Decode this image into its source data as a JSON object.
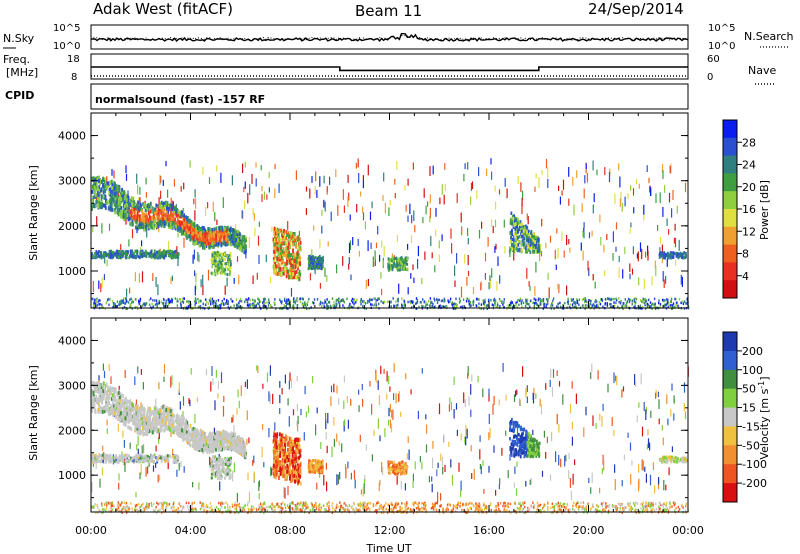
{
  "header": {
    "radar_title": "Adak West (fitACF)",
    "beam_title": "Beam 11",
    "date": "24/Sep/2014"
  },
  "params": {
    "nsky_label": "N.Sky",
    "nsearch_label": "N.Search",
    "freq_label_1": "Freq.",
    "freq_label_2": "[MHz]",
    "nave_label": "Nave",
    "cpid_label": "CPID",
    "cpid_text": "normalsound (fast) -157 RF",
    "noise_ticks_left": [
      "10^5",
      "10^0"
    ],
    "noise_ticks_right": [
      "10^5",
      "10^0"
    ],
    "freq_ticks": [
      "18",
      "8"
    ],
    "nave_ticks": [
      "60",
      "0"
    ]
  },
  "chart_data": [
    {
      "type": "line",
      "name": "frequency",
      "ylabel": "Freq. [MHz]",
      "ylim": [
        8,
        18
      ],
      "x_hours": [
        0,
        10.0,
        10.0,
        18.0,
        18.0,
        24
      ],
      "values": [
        14.5,
        14.5,
        12.8,
        12.8,
        14.5,
        14.5
      ]
    },
    {
      "type": "heatmap",
      "name": "power",
      "xlabel": "Time UT",
      "ylabel": "Slant Range [km]",
      "ylim": [
        180,
        4500
      ],
      "y_ticks": [
        "4000",
        "3000",
        "2000",
        "1000"
      ],
      "x_ticks": [
        "00:00",
        "04:00",
        "08:00",
        "12:00",
        "16:00",
        "20:00",
        "00:00"
      ],
      "colorbar_label": "Power [dB]",
      "colorbar_ticks": [
        "28",
        "24",
        "20",
        "16",
        "12",
        "8",
        "4"
      ],
      "colorbar_range": [
        0,
        30
      ]
    },
    {
      "type": "heatmap",
      "name": "velocity",
      "xlabel": "Time UT",
      "ylabel": "Slant Range [km]",
      "ylim": [
        180,
        4500
      ],
      "y_ticks": [
        "4000",
        "3000",
        "2000",
        "1000"
      ],
      "x_ticks": [
        "00:00",
        "04:00",
        "08:00",
        "12:00",
        "16:00",
        "20:00",
        "00:00"
      ],
      "colorbar_label": "Velocity [m s",
      "colorbar_label_sup": "-1",
      "colorbar_label_end": "]",
      "colorbar_ticks": [
        "200",
        "100",
        "50",
        "15",
        "-15",
        "-50",
        "-100",
        "-200"
      ]
    }
  ],
  "colors": {
    "power_scale": [
      "#0a1ef0",
      "#2a4fd0",
      "#2f7f80",
      "#3f9f40",
      "#8fcf3f",
      "#dfe040",
      "#f0a030",
      "#ef6020",
      "#e83020",
      "#d01010"
    ],
    "velocity_scale": [
      "#1e3ab0",
      "#2f5fd0",
      "#3f8f3f",
      "#7fcf3f",
      "#c8c8c8",
      "#f0c040",
      "#f09030",
      "#ee5520",
      "#d81010"
    ]
  }
}
